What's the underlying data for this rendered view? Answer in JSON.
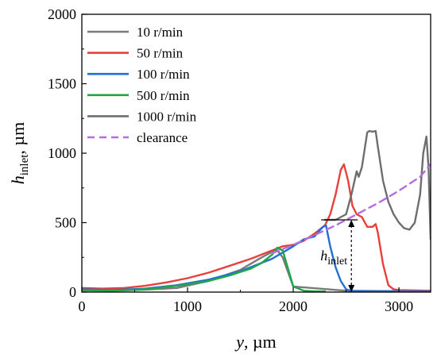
{
  "chart_data": {
    "type": "line",
    "xlabel": "y, µm",
    "xlabel_main": "y",
    "xlabel_unit": ", µm",
    "ylabel": "h_inlet, µm",
    "ylabel_main": "h",
    "ylabel_sub": "inlet",
    "ylabel_unit": ", µm",
    "xlim": [
      0,
      3300
    ],
    "ylim": [
      0,
      2000
    ],
    "xticks": [
      0,
      1000,
      2000,
      3000
    ],
    "yticks": [
      0,
      500,
      1000,
      1500,
      2000
    ],
    "grid": false,
    "legend_position": "top-left",
    "annotation": {
      "text_main": "h",
      "text_sub": "inlet",
      "x": 2550,
      "y_from": 0,
      "y_to": 520
    },
    "series": [
      {
        "name": "10 r/min",
        "color": "#7a7a7a",
        "x": [
          0,
          300,
          600,
          900,
          1200,
          1500,
          1700,
          1800,
          1850,
          1900,
          2000,
          2500,
          3300
        ],
        "y": [
          12,
          10,
          18,
          30,
          80,
          160,
          250,
          290,
          300,
          250,
          40,
          10,
          5
        ]
      },
      {
        "name": "50 r/min",
        "color": "#e8403c",
        "x": [
          0,
          200,
          400,
          600,
          800,
          1000,
          1200,
          1400,
          1600,
          1800,
          1900,
          2000,
          2100,
          2200,
          2300,
          2350,
          2400,
          2450,
          2480,
          2520,
          2560,
          2600,
          2650,
          2700,
          2750,
          2780,
          2800,
          2850,
          2900,
          2950,
          3000,
          3300
        ],
        "y": [
          30,
          25,
          30,
          45,
          70,
          100,
          140,
          190,
          240,
          300,
          330,
          340,
          370,
          420,
          480,
          560,
          700,
          880,
          920,
          800,
          620,
          560,
          540,
          470,
          470,
          490,
          430,
          200,
          50,
          20,
          15,
          10
        ]
      },
      {
        "name": "100 r/min",
        "color": "#1f6fd6",
        "x": [
          0,
          300,
          600,
          900,
          1200,
          1500,
          1800,
          2000,
          2100,
          2200,
          2280,
          2310,
          2350,
          2400,
          2450,
          2500,
          2550,
          2700,
          3300
        ],
        "y": [
          20,
          15,
          25,
          50,
          90,
          150,
          240,
          330,
          380,
          400,
          470,
          480,
          330,
          180,
          80,
          20,
          8,
          5,
          5
        ]
      },
      {
        "name": "500 r/min",
        "color": "#20a64a",
        "x": [
          0,
          300,
          600,
          900,
          1200,
          1400,
          1600,
          1700,
          1800,
          1850,
          1900,
          2000,
          2100,
          2200,
          2300
        ],
        "y": [
          15,
          12,
          20,
          45,
          80,
          120,
          170,
          210,
          270,
          320,
          300,
          40,
          10,
          5,
          5
        ]
      },
      {
        "name": "1000 r/min",
        "color": "#6e6e6e",
        "x": [
          2300,
          2400,
          2500,
          2550,
          2600,
          2620,
          2650,
          2700,
          2720,
          2750,
          2780,
          2800,
          2850,
          2900,
          2950,
          3000,
          3050,
          3100,
          3150,
          3200,
          3230,
          3260,
          3280,
          3300
        ],
        "y": [
          520,
          520,
          560,
          700,
          870,
          830,
          900,
          1150,
          1160,
          1155,
          1160,
          1050,
          800,
          650,
          560,
          500,
          460,
          450,
          500,
          700,
          1000,
          1120,
          900,
          380
        ]
      },
      {
        "name": "clearance",
        "color": "#b26ee0",
        "dashed": true,
        "x": [
          1800,
          2000,
          2200,
          2400,
          2600,
          2800,
          3000,
          3200,
          3300
        ],
        "y": [
          280,
          340,
          410,
          480,
          560,
          640,
          730,
          830,
          920
        ]
      }
    ]
  }
}
